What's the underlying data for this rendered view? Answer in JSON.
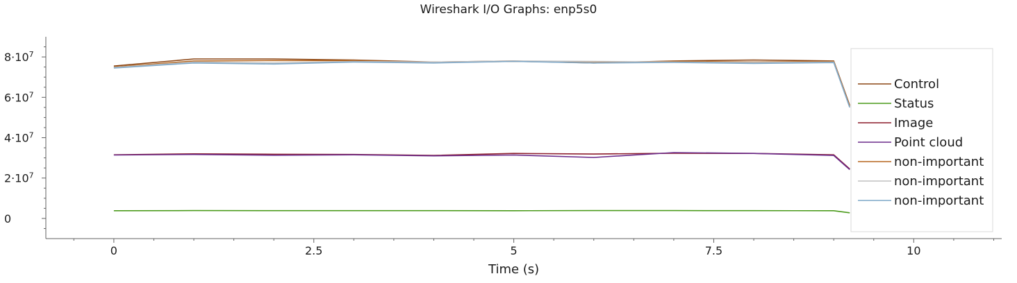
{
  "chart_data": {
    "type": "line",
    "title": "Wireshark I/O Graphs: enp5s0",
    "xlabel": "Time (s)",
    "ylabel": "",
    "xlim": [
      -0.85,
      11.1
    ],
    "ylim": [
      -10000000,
      90000000
    ],
    "x_ticks": [
      0,
      2.5,
      5,
      7.5,
      10
    ],
    "x_tick_labels": [
      "0",
      "2.5",
      "5",
      "7.5",
      "10"
    ],
    "y_ticks": [
      0,
      20000000,
      40000000,
      60000000,
      80000000
    ],
    "y_tick_labels": [
      {
        "base": "0",
        "exp": ""
      },
      {
        "base": "2·10",
        "exp": "7"
      },
      {
        "base": "4·10",
        "exp": "7"
      },
      {
        "base": "6·10",
        "exp": "7"
      },
      {
        "base": "8·10",
        "exp": "7"
      }
    ],
    "legend_position": "right",
    "grid": false,
    "series": [
      {
        "name": "Control",
        "color": "#8b4513",
        "x": [
          0,
          1,
          2,
          3,
          4,
          5,
          6,
          7,
          8,
          9,
          9.2
        ],
        "y": [
          75500000,
          79000000,
          79000000,
          78500000,
          77500000,
          78000000,
          77000000,
          78000000,
          78500000,
          78000000,
          56000000
        ]
      },
      {
        "name": "Status",
        "color": "#4a9a1a",
        "x": [
          0,
          1,
          2,
          3,
          4,
          5,
          6,
          7,
          8,
          9,
          9.2
        ],
        "y": [
          3800000,
          3900000,
          3850000,
          3850000,
          3850000,
          3800000,
          3900000,
          3900000,
          3850000,
          3800000,
          2800000
        ]
      },
      {
        "name": "Image",
        "color": "#8b1a2a",
        "x": [
          0,
          1,
          2,
          3,
          4,
          5,
          6,
          7,
          8,
          9,
          9.2
        ],
        "y": [
          31500000,
          32000000,
          31800000,
          31700000,
          31200000,
          32200000,
          31900000,
          32300000,
          32200000,
          31500000,
          24500000
        ]
      },
      {
        "name": "Point cloud",
        "color": "#6a2a8a",
        "x": [
          0,
          1,
          2,
          3,
          4,
          5,
          6,
          7,
          8,
          9,
          9.2
        ],
        "y": [
          31400000,
          31700000,
          31300000,
          31500000,
          31000000,
          31400000,
          30200000,
          32600000,
          32200000,
          31200000,
          24200000
        ]
      },
      {
        "name": "non-important",
        "color": "#b5651d",
        "x": [
          0,
          1,
          2,
          3,
          4,
          5,
          6,
          7,
          8,
          9,
          9.2
        ],
        "y": [
          75000000,
          78000000,
          78200000,
          78200000,
          77200000,
          77800000,
          77200000,
          77800000,
          77500000,
          77800000,
          55500000
        ]
      },
      {
        "name": "non-important",
        "color": "#c0c0c0",
        "x": [
          0,
          1,
          2,
          3,
          4,
          5,
          6,
          7,
          8,
          9,
          9.2
        ],
        "y": [
          74800000,
          77500000,
          77000000,
          77800000,
          77500000,
          78000000,
          77800000,
          77500000,
          77300000,
          77500000,
          55000000
        ]
      },
      {
        "name": "non-important",
        "color": "#7fa8c8",
        "x": [
          0,
          1,
          2,
          3,
          4,
          5,
          6,
          7,
          8,
          9,
          9.2
        ],
        "y": [
          74500000,
          77000000,
          76500000,
          77500000,
          77000000,
          77800000,
          77000000,
          77300000,
          76800000,
          77200000,
          55000000
        ]
      }
    ]
  }
}
